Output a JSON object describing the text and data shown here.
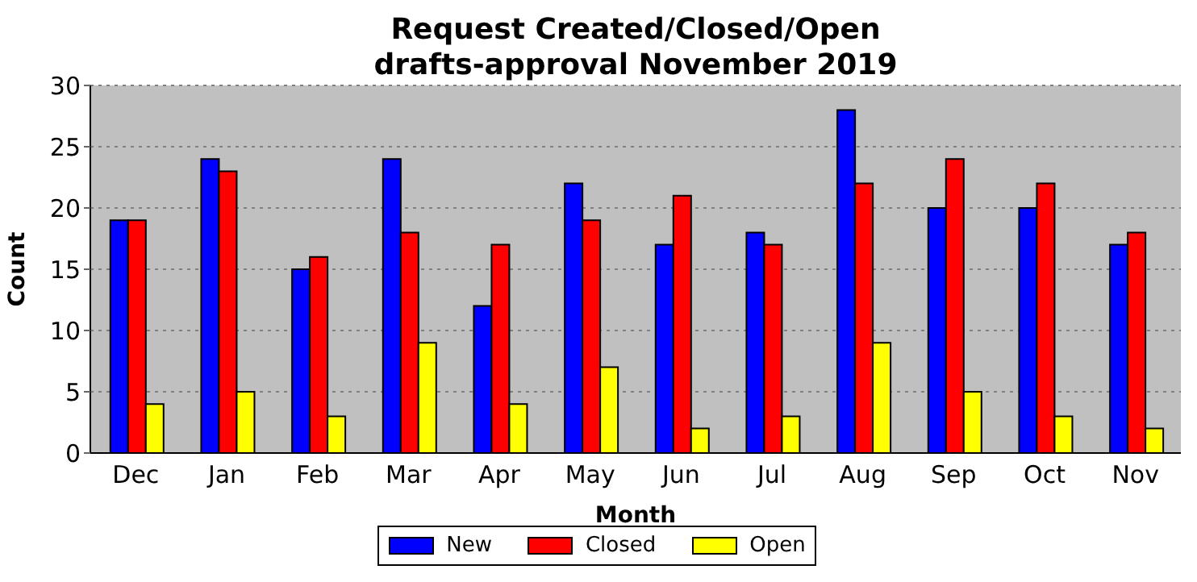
{
  "chart_data": {
    "type": "bar",
    "title": "Request Created/Closed/Open\ndrafts-approval November 2019",
    "xlabel": "Month",
    "ylabel": "Count",
    "categories": [
      "Dec",
      "Jan",
      "Feb",
      "Mar",
      "Apr",
      "May",
      "Jun",
      "Jul",
      "Aug",
      "Sep",
      "Oct",
      "Nov"
    ],
    "series": [
      {
        "name": "New",
        "color": "#0000ff",
        "values": [
          19,
          24,
          15,
          24,
          12,
          22,
          17,
          18,
          28,
          20,
          20,
          17
        ]
      },
      {
        "name": "Closed",
        "color": "#ff0000",
        "values": [
          19,
          23,
          16,
          18,
          17,
          19,
          21,
          17,
          22,
          24,
          22,
          18
        ]
      },
      {
        "name": "Open",
        "color": "#ffff00",
        "values": [
          4,
          5,
          3,
          9,
          4,
          7,
          2,
          3,
          9,
          5,
          3,
          2
        ]
      }
    ],
    "ylim": [
      0,
      30
    ],
    "yticks": [
      0,
      5,
      10,
      15,
      20,
      25,
      30
    ],
    "grid": "y",
    "legend": "bottom"
  }
}
